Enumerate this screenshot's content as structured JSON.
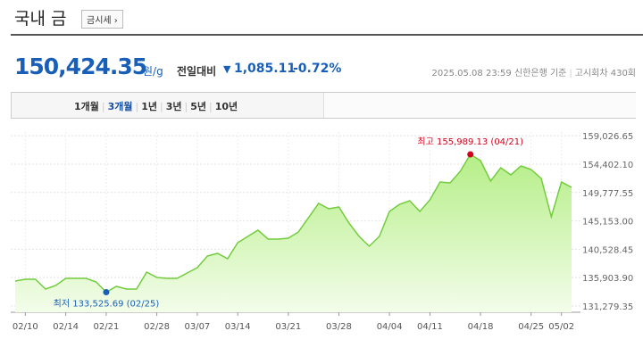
{
  "header": {
    "title": "국내 금",
    "button": "금시세 ›"
  },
  "quote": {
    "price": "150,424.35",
    "unit": "원/g",
    "change_label": "전일대비",
    "change": "1,085.11",
    "change_rate": "-0.72%"
  },
  "info": {
    "datetime": "2025.05.08 23:59",
    "source": "신한은행 기준",
    "round": "고시회차 430회"
  },
  "tabs": [
    "1개월",
    "3개월",
    "1년",
    "3년",
    "5년",
    "10년"
  ],
  "chart_data": {
    "type": "area",
    "categories": [
      null,
      "02/10",
      null,
      null,
      null,
      "02/14",
      null,
      null,
      null,
      "02/21",
      null,
      null,
      null,
      null,
      "02/28",
      null,
      null,
      null,
      "03/07",
      null,
      null,
      null,
      "03/14",
      null,
      null,
      null,
      null,
      "03/21",
      null,
      null,
      null,
      null,
      "03/28",
      null,
      null,
      null,
      null,
      "04/04",
      null,
      null,
      null,
      "04/11",
      null,
      null,
      null,
      null,
      "04/18",
      null,
      null,
      null,
      null,
      "04/25",
      null,
      null,
      "05/02",
      null
    ],
    "values": [
      135350,
      135641,
      135641,
      134042,
      134623,
      135787,
      135787,
      135787,
      135205,
      133525.69,
      134478,
      134042,
      134042,
      136804,
      135932,
      135787,
      135787,
      136659,
      137531,
      139421,
      139858,
      138985,
      141603,
      142620,
      143638,
      142184,
      142184,
      142330,
      143347,
      145674,
      148000,
      147128,
      147419,
      144801,
      142620,
      141021,
      142620,
      146692,
      147855,
      148437,
      146692,
      148582,
      151490,
      151345,
      153235,
      155989.13,
      154980,
      151635,
      153816,
      152653,
      154107,
      153525,
      152072,
      145819,
      151490,
      150618
    ],
    "color": "#72cc3d",
    "ylim": [
      130260,
      159630
    ],
    "yticks": [
      {
        "value": 131279.35,
        "label": "131,279.35"
      },
      {
        "value": 135903.9,
        "label": "135,903.90"
      },
      {
        "value": 140528.45,
        "label": "140,528.45"
      },
      {
        "value": 145153,
        "label": "145,153.00"
      },
      {
        "value": 149777.55,
        "label": "149,777.55"
      },
      {
        "value": 154402.1,
        "label": "154,402.10"
      },
      {
        "value": 159026.65,
        "label": "159,026.65"
      }
    ],
    "grid": true,
    "annotations": [
      {
        "text": "최고 155,989.13 (04/21)",
        "color": "#d0021b"
      },
      {
        "text": "최저 133,525.69 (02/25)",
        "color": "#1a5fb7"
      }
    ]
  }
}
